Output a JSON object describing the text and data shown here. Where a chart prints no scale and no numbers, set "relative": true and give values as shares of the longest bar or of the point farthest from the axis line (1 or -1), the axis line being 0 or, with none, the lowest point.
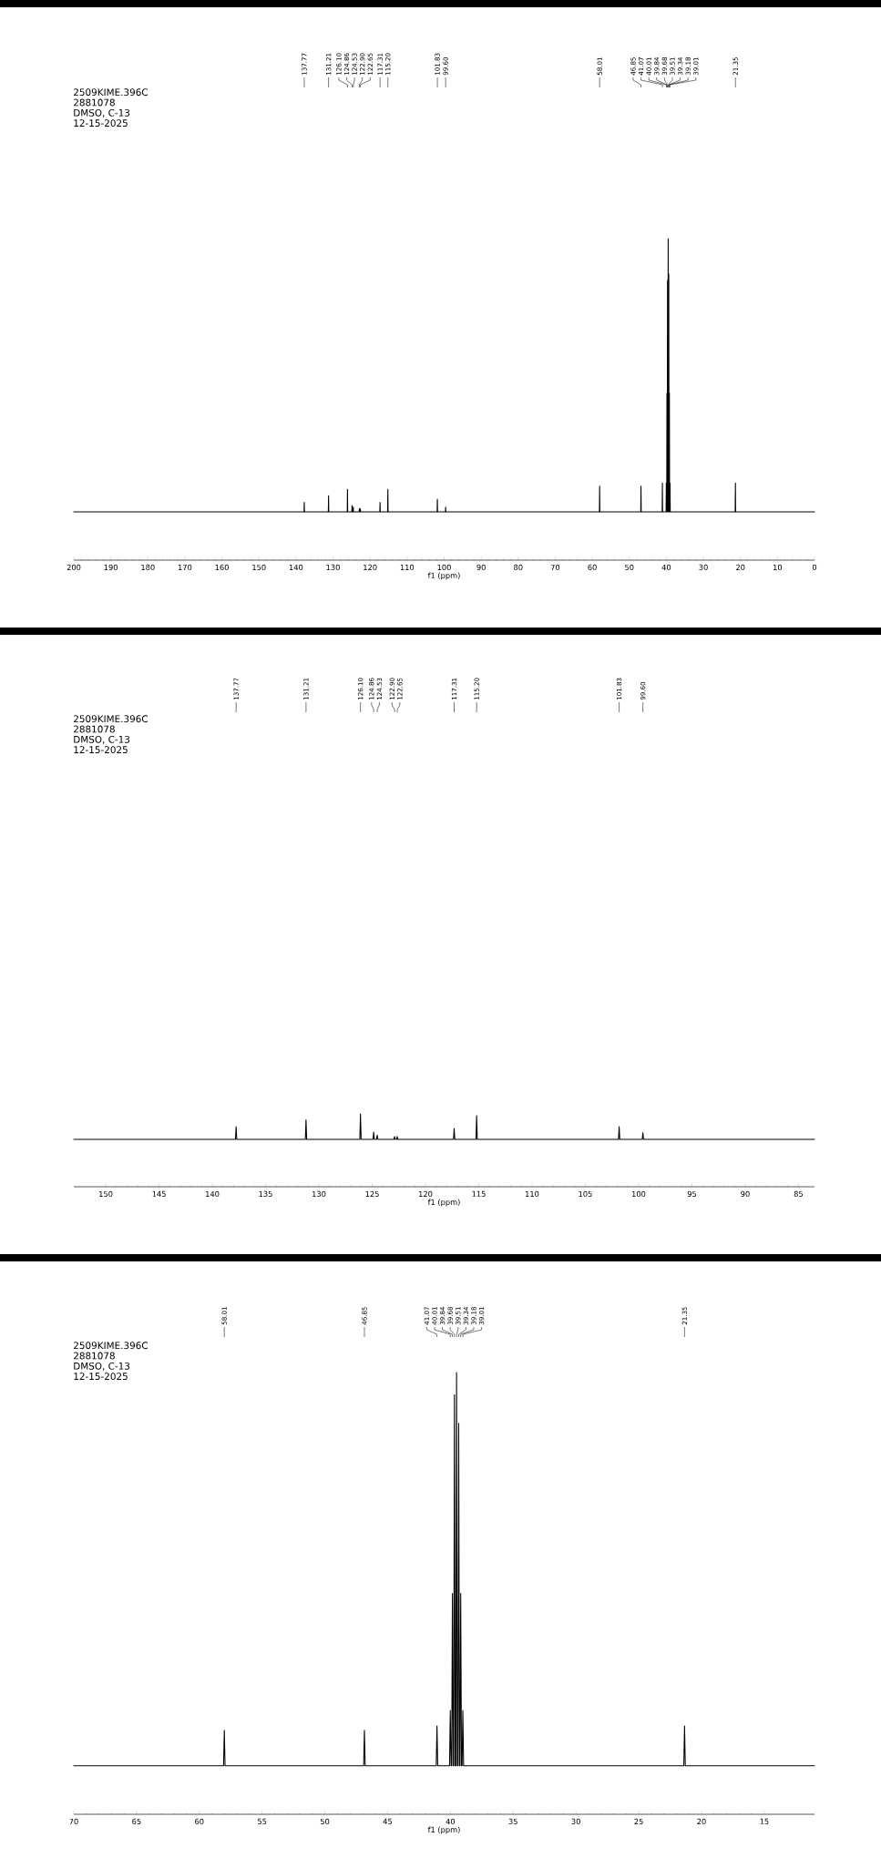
{
  "chart_data": [
    {
      "type": "line",
      "relative": true,
      "color": "#000000",
      "xlabel": "f1 (ppm)",
      "xlim": [
        200,
        0
      ],
      "xticks": [
        200,
        190,
        180,
        170,
        160,
        150,
        140,
        130,
        120,
        110,
        100,
        90,
        80,
        70,
        60,
        50,
        40,
        30,
        20,
        10,
        0
      ],
      "x": [
        200,
        137.83,
        137.77,
        137.71,
        131.27,
        131.21,
        131.15,
        126.16,
        126.1,
        126.04,
        124.92,
        124.86,
        124.8,
        124.59,
        124.53,
        124.47,
        122.96,
        122.9,
        122.84,
        122.71,
        122.65,
        122.59,
        117.37,
        117.31,
        117.25,
        115.26,
        115.2,
        115.14,
        101.89,
        101.83,
        101.77,
        99.66,
        99.6,
        99.54,
        58.07,
        58.01,
        57.95,
        46.91,
        46.85,
        46.79,
        41.13,
        41.07,
        41.01,
        40.07,
        40.01,
        39.95,
        39.9,
        39.84,
        39.78,
        39.74,
        39.68,
        39.62,
        39.57,
        39.51,
        39.45,
        39.4,
        39.34,
        39.28,
        39.24,
        39.18,
        39.12,
        39.07,
        39.01,
        38.95,
        21.41,
        21.35,
        21.29,
        0
      ],
      "values": [
        0.15,
        0.15,
        0.18,
        0.15,
        0.15,
        0.2,
        0.15,
        0.15,
        0.22,
        0.15,
        0.15,
        0.17,
        0.15,
        0.15,
        0.165,
        0.15,
        0.15,
        0.16,
        0.15,
        0.15,
        0.16,
        0.15,
        0.15,
        0.18,
        0.15,
        0.15,
        0.22,
        0.15,
        0.15,
        0.19,
        0.15,
        0.15,
        0.165,
        0.15,
        0.15,
        0.23,
        0.15,
        0.15,
        0.23,
        0.15,
        0.15,
        0.24,
        0.15,
        0.15,
        0.24,
        0.15,
        0.15,
        0.52,
        0.15,
        0.15,
        0.87,
        0.15,
        0.15,
        1,
        0.15,
        0.15,
        0.89,
        0.15,
        0.15,
        0.52,
        0.15,
        0.15,
        0.24,
        0.15,
        0.15,
        0.24,
        0.15,
        0.15
      ],
      "annotations": [
        "2509KIME.396C",
        "2881078",
        "DMSO, C-13",
        "12-15-2025",
        {
          "text": "137.77",
          "x": 137.77
        },
        {
          "text": "131.21",
          "x": 131.21
        },
        {
          "text": "126.10",
          "x": 126.1
        },
        {
          "text": "124.86",
          "x": 124.86
        },
        {
          "text": "124.53",
          "x": 124.53
        },
        {
          "text": "122.90",
          "x": 122.9
        },
        {
          "text": "122.65",
          "x": 122.65
        },
        {
          "text": "117.31",
          "x": 117.31
        },
        {
          "text": "115.20",
          "x": 115.2
        },
        {
          "text": "101.83",
          "x": 101.83
        },
        {
          "text": "99.60",
          "x": 99.6
        },
        {
          "text": "58.01",
          "x": 58.01
        },
        {
          "text": "46.85",
          "x": 46.85
        },
        {
          "text": "41.07",
          "x": 41.07
        },
        {
          "text": "40.01",
          "x": 40.01
        },
        {
          "text": "39.84",
          "x": 39.84
        },
        {
          "text": "39.68",
          "x": 39.68
        },
        {
          "text": "39.51",
          "x": 39.51
        },
        {
          "text": "39.34",
          "x": 39.34
        },
        {
          "text": "39.18",
          "x": 39.18
        },
        {
          "text": "39.01",
          "x": 39.01
        },
        {
          "text": "21.35",
          "x": 21.35
        }
      ]
    },
    {
      "type": "line",
      "relative": true,
      "color": "#000000",
      "xlabel": "f1 (ppm)",
      "xlim": [
        153,
        83.5
      ],
      "xticks": [
        150,
        145,
        140,
        135,
        130,
        125,
        120,
        115,
        110,
        105,
        100,
        95,
        90,
        85
      ],
      "x": [
        153,
        137.83,
        137.77,
        137.71,
        131.27,
        131.21,
        131.15,
        126.16,
        126.1,
        126.04,
        124.92,
        124.86,
        124.8,
        124.59,
        124.53,
        124.47,
        122.96,
        122.9,
        122.84,
        122.71,
        122.65,
        122.59,
        117.37,
        117.31,
        117.25,
        115.26,
        115.2,
        115.14,
        101.89,
        101.83,
        101.77,
        99.66,
        99.6,
        99.54,
        83.5
      ],
      "values": [
        0.65,
        0.65,
        0.825,
        0.65,
        0.65,
        0.92,
        0.65,
        0.65,
        1,
        0.65,
        0.65,
        0.75,
        0.65,
        0.65,
        0.71,
        0.65,
        0.65,
        0.69,
        0.65,
        0.65,
        0.69,
        0.65,
        0.65,
        0.8,
        0.65,
        0.65,
        0.975,
        0.65,
        0.65,
        0.825,
        0.65,
        0.65,
        0.74,
        0.65,
        0.65
      ],
      "annotations": [
        "2509KIME.396C",
        "2881078",
        "DMSO, C-13",
        "12-15-2025",
        {
          "text": "137.77",
          "x": 137.77
        },
        {
          "text": "131.21",
          "x": 131.21
        },
        {
          "text": "126.10",
          "x": 126.1
        },
        {
          "text": "124.86",
          "x": 124.86
        },
        {
          "text": "124.53",
          "x": 124.53
        },
        {
          "text": "122.90",
          "x": 122.9
        },
        {
          "text": "122.65",
          "x": 122.65
        },
        {
          "text": "117.31",
          "x": 117.31
        },
        {
          "text": "115.20",
          "x": 115.2
        },
        {
          "text": "101.83",
          "x": 101.83
        },
        {
          "text": "99.60",
          "x": 99.6
        }
      ]
    },
    {
      "type": "line",
      "relative": true,
      "color": "#000000",
      "xlabel": "f1 (ppm)",
      "xlim": [
        70,
        11
      ],
      "xticks": [
        70,
        65,
        60,
        55,
        50,
        45,
        40,
        35,
        30,
        25,
        20,
        15
      ],
      "x": [
        70,
        58.07,
        58.01,
        57.95,
        46.91,
        46.85,
        46.79,
        41.13,
        41.07,
        41.01,
        40.07,
        40.01,
        39.95,
        39.9,
        39.84,
        39.78,
        39.74,
        39.68,
        39.62,
        39.57,
        39.51,
        39.45,
        39.4,
        39.34,
        39.28,
        39.24,
        39.18,
        39.12,
        39.07,
        39.01,
        38.95,
        21.41,
        21.35,
        21.29,
        11
      ],
      "values": [
        0.11,
        0.11,
        0.19,
        0.11,
        0.11,
        0.19,
        0.11,
        0.11,
        0.2,
        0.11,
        0.11,
        0.235,
        0.11,
        0.11,
        0.5,
        0.11,
        0.11,
        0.95,
        0.11,
        0.11,
        1,
        0.11,
        0.11,
        0.885,
        0.11,
        0.11,
        0.5,
        0.11,
        0.11,
        0.235,
        0.11,
        0.11,
        0.2,
        0.11,
        0.11
      ],
      "annotations": [
        "2509KIME.396C",
        "2881078",
        "DMSO, C-13",
        "12-15-2025",
        {
          "text": "58.01",
          "x": 58.01
        },
        {
          "text": "46.85",
          "x": 46.85
        },
        {
          "text": "41.07",
          "x": 41.07
        },
        {
          "text": "40.01",
          "x": 40.01
        },
        {
          "text": "39.84",
          "x": 39.84
        },
        {
          "text": "39.68",
          "x": 39.68
        },
        {
          "text": "39.51",
          "x": 39.51
        },
        {
          "text": "39.34",
          "x": 39.34
        },
        {
          "text": "39.18",
          "x": 39.18
        },
        {
          "text": "39.01",
          "x": 39.01
        },
        {
          "text": "21.35",
          "x": 21.35
        }
      ]
    }
  ]
}
